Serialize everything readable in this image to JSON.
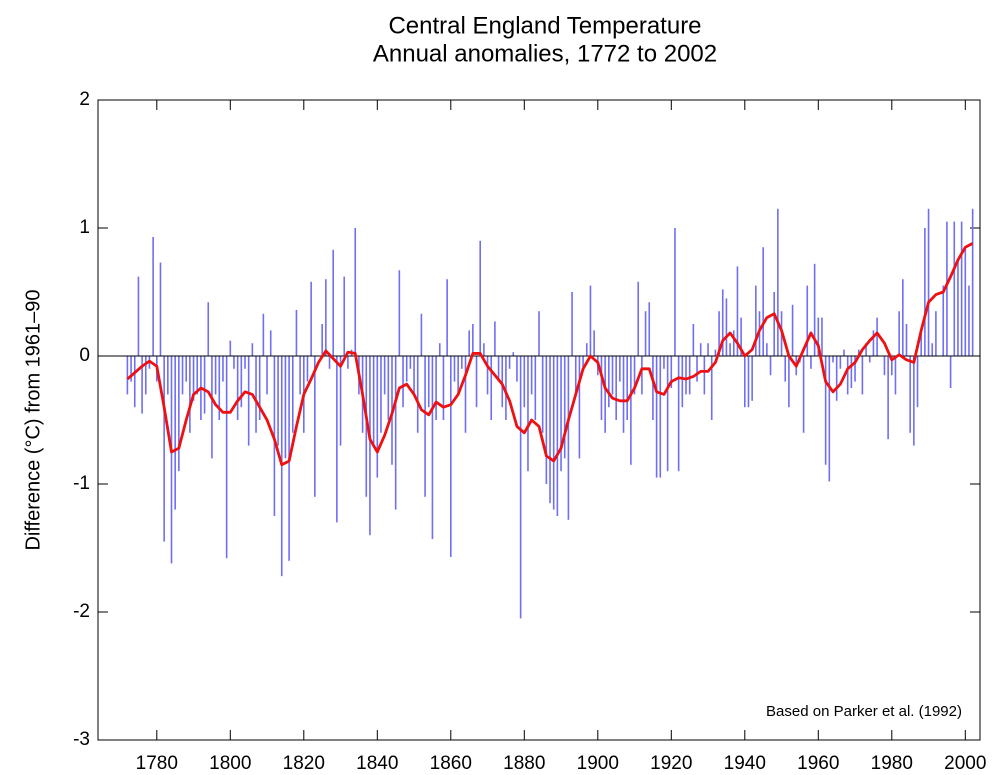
{
  "chart_data": {
    "type": "combo",
    "title": "Central England Temperature",
    "subtitle": "Annual anomalies, 1772 to 2002",
    "y_label": "Difference (°C) from 1961–90",
    "annotation": "Based on Parker et al. (1992)",
    "xlim": [
      1764,
      2004
    ],
    "xticks": [
      1780,
      1800,
      1820,
      1840,
      1860,
      1880,
      1900,
      1920,
      1940,
      1960,
      1980,
      2000
    ],
    "ylim": [
      -3,
      2
    ],
    "yticks": [
      -3,
      -2,
      -1,
      0,
      1,
      2
    ],
    "series": [
      {
        "type": "bar",
        "color": "#6f6ff2",
        "x": [
          1772,
          1773,
          1774,
          1775,
          1776,
          1777,
          1778,
          1779,
          1780,
          1781,
          1782,
          1783,
          1784,
          1785,
          1786,
          1787,
          1788,
          1789,
          1790,
          1791,
          1792,
          1793,
          1794,
          1795,
          1796,
          1797,
          1798,
          1799,
          1800,
          1801,
          1802,
          1803,
          1804,
          1805,
          1806,
          1807,
          1808,
          1809,
          1810,
          1811,
          1812,
          1813,
          1814,
          1815,
          1816,
          1817,
          1818,
          1819,
          1820,
          1821,
          1822,
          1823,
          1824,
          1825,
          1826,
          1827,
          1828,
          1829,
          1830,
          1831,
          1832,
          1833,
          1834,
          1835,
          1836,
          1837,
          1838,
          1839,
          1840,
          1841,
          1842,
          1843,
          1844,
          1845,
          1846,
          1847,
          1848,
          1849,
          1850,
          1851,
          1852,
          1853,
          1854,
          1855,
          1856,
          1857,
          1858,
          1859,
          1860,
          1861,
          1862,
          1863,
          1864,
          1865,
          1866,
          1867,
          1868,
          1869,
          1870,
          1871,
          1872,
          1873,
          1874,
          1875,
          1876,
          1877,
          1878,
          1879,
          1880,
          1881,
          1882,
          1883,
          1884,
          1885,
          1886,
          1887,
          1888,
          1889,
          1890,
          1891,
          1892,
          1893,
          1894,
          1895,
          1896,
          1897,
          1898,
          1899,
          1900,
          1901,
          1902,
          1903,
          1904,
          1905,
          1906,
          1907,
          1908,
          1909,
          1910,
          1911,
          1912,
          1913,
          1914,
          1915,
          1916,
          1917,
          1918,
          1919,
          1920,
          1921,
          1922,
          1923,
          1924,
          1925,
          1926,
          1927,
          1928,
          1929,
          1930,
          1931,
          1932,
          1933,
          1934,
          1935,
          1936,
          1937,
          1938,
          1939,
          1940,
          1941,
          1942,
          1943,
          1944,
          1945,
          1946,
          1947,
          1948,
          1949,
          1950,
          1951,
          1952,
          1953,
          1954,
          1955,
          1956,
          1957,
          1958,
          1959,
          1960,
          1961,
          1962,
          1963,
          1964,
          1965,
          1966,
          1967,
          1968,
          1969,
          1970,
          1971,
          1972,
          1973,
          1974,
          1975,
          1976,
          1977,
          1978,
          1979,
          1980,
          1981,
          1982,
          1983,
          1984,
          1985,
          1986,
          1987,
          1988,
          1989,
          1990,
          1991,
          1992,
          1993,
          1994,
          1995,
          1996,
          1997,
          1998,
          1999,
          2000,
          2001,
          2002
        ],
        "values": [
          -0.3,
          -0.2,
          -0.4,
          0.62,
          -0.45,
          -0.3,
          -0.1,
          0.93,
          -0.2,
          0.73,
          -1.45,
          -0.3,
          -1.62,
          -1.2,
          -0.9,
          -0.3,
          -0.2,
          -0.6,
          -0.35,
          -0.3,
          -0.5,
          -0.45,
          0.42,
          -0.8,
          -0.3,
          -0.5,
          -0.2,
          -1.58,
          0.12,
          -0.1,
          -0.5,
          -0.4,
          -0.1,
          -0.7,
          0.1,
          -0.6,
          -0.5,
          0.33,
          -0.3,
          0.2,
          -1.25,
          -0.7,
          -1.72,
          -0.8,
          -1.6,
          -0.6,
          0.36,
          -0.3,
          -0.6,
          -0.2,
          0.58,
          -1.1,
          0.0,
          0.25,
          0.6,
          -0.1,
          0.83,
          -1.3,
          -0.7,
          0.62,
          -0.1,
          0.05,
          1.0,
          -0.3,
          -0.6,
          -1.1,
          -1.4,
          -0.7,
          -0.95,
          -0.6,
          -0.3,
          -0.5,
          -0.85,
          -1.2,
          0.67,
          -0.4,
          -0.2,
          -0.1,
          -0.3,
          -0.6,
          0.33,
          -1.1,
          -0.4,
          -1.43,
          -0.5,
          0.1,
          -0.5,
          0.6,
          -1.57,
          -0.2,
          -0.3,
          -0.1,
          -0.6,
          0.2,
          0.25,
          -0.4,
          0.9,
          0.1,
          -0.3,
          -0.5,
          0.27,
          -0.2,
          -0.4,
          -0.5,
          -0.1,
          0.03,
          -0.2,
          -2.05,
          -0.4,
          -0.9,
          -0.3,
          -0.5,
          0.35,
          -0.6,
          -1.0,
          -1.15,
          -1.2,
          -1.25,
          -0.9,
          -0.8,
          -1.28,
          0.5,
          -0.3,
          -0.8,
          -0.1,
          0.1,
          0.55,
          0.2,
          -0.15,
          -0.5,
          -0.6,
          -0.4,
          -0.3,
          -0.5,
          -0.2,
          -0.6,
          -0.5,
          -0.85,
          -0.3,
          0.58,
          -0.3,
          0.35,
          0.42,
          -0.5,
          -0.95,
          -0.95,
          -0.1,
          -0.9,
          -0.25,
          1.0,
          -0.9,
          -0.4,
          -0.3,
          -0.3,
          0.25,
          -0.2,
          0.1,
          -0.3,
          0.1,
          -0.5,
          0.05,
          0.35,
          0.52,
          0.45,
          0.1,
          0.2,
          0.7,
          0.3,
          -0.4,
          -0.4,
          -0.35,
          0.55,
          0.35,
          0.85,
          0.1,
          -0.15,
          0.5,
          1.15,
          0.35,
          -0.2,
          -0.4,
          0.4,
          -0.15,
          -0.05,
          -0.6,
          0.55,
          -0.1,
          0.72,
          0.3,
          0.3,
          -0.85,
          -0.98,
          -0.05,
          -0.35,
          -0.1,
          0.05,
          -0.3,
          -0.25,
          -0.2,
          0.05,
          -0.3,
          0.1,
          -0.05,
          0.2,
          0.3,
          0.0,
          -0.15,
          -0.65,
          -0.15,
          -0.3,
          0.35,
          0.6,
          0.25,
          -0.6,
          -0.7,
          -0.4,
          0.2,
          1.0,
          1.15,
          0.1,
          0.35,
          0.0,
          0.55,
          1.05,
          -0.25,
          1.05,
          0.75,
          1.05,
          0.85,
          0.55,
          1.15
        ]
      },
      {
        "type": "line",
        "color": "#ee1111",
        "x": [
          1772,
          1774,
          1776,
          1778,
          1780,
          1782,
          1784,
          1786,
          1788,
          1790,
          1792,
          1794,
          1796,
          1798,
          1800,
          1802,
          1804,
          1806,
          1808,
          1810,
          1812,
          1814,
          1816,
          1818,
          1820,
          1822,
          1824,
          1826,
          1828,
          1830,
          1832,
          1834,
          1836,
          1838,
          1840,
          1842,
          1844,
          1846,
          1848,
          1850,
          1852,
          1854,
          1856,
          1858,
          1860,
          1862,
          1864,
          1866,
          1868,
          1870,
          1872,
          1874,
          1876,
          1878,
          1880,
          1882,
          1884,
          1886,
          1888,
          1890,
          1892,
          1894,
          1896,
          1898,
          1900,
          1902,
          1904,
          1906,
          1908,
          1910,
          1912,
          1914,
          1916,
          1918,
          1920,
          1922,
          1924,
          1926,
          1928,
          1930,
          1932,
          1934,
          1936,
          1938,
          1940,
          1942,
          1944,
          1946,
          1948,
          1950,
          1952,
          1954,
          1956,
          1958,
          1960,
          1962,
          1964,
          1966,
          1968,
          1970,
          1972,
          1974,
          1976,
          1978,
          1980,
          1982,
          1984,
          1986,
          1988,
          1990,
          1992,
          1994,
          1996,
          1998,
          2000,
          2002
        ],
        "values": [
          -0.18,
          -0.13,
          -0.08,
          -0.04,
          -0.08,
          -0.4,
          -0.75,
          -0.72,
          -0.5,
          -0.3,
          -0.25,
          -0.28,
          -0.38,
          -0.44,
          -0.44,
          -0.35,
          -0.28,
          -0.3,
          -0.4,
          -0.5,
          -0.65,
          -0.85,
          -0.82,
          -0.55,
          -0.3,
          -0.18,
          -0.05,
          0.04,
          -0.02,
          -0.08,
          0.03,
          0.02,
          -0.3,
          -0.65,
          -0.75,
          -0.62,
          -0.45,
          -0.25,
          -0.22,
          -0.3,
          -0.42,
          -0.46,
          -0.36,
          -0.4,
          -0.38,
          -0.3,
          -0.15,
          0.02,
          0.02,
          -0.08,
          -0.15,
          -0.22,
          -0.35,
          -0.55,
          -0.6,
          -0.5,
          -0.55,
          -0.78,
          -0.82,
          -0.72,
          -0.5,
          -0.3,
          -0.1,
          0.0,
          -0.05,
          -0.25,
          -0.33,
          -0.35,
          -0.35,
          -0.25,
          -0.1,
          -0.1,
          -0.28,
          -0.3,
          -0.2,
          -0.17,
          -0.18,
          -0.16,
          -0.12,
          -0.12,
          -0.05,
          0.12,
          0.18,
          0.1,
          0.0,
          0.05,
          0.2,
          0.3,
          0.33,
          0.2,
          0.0,
          -0.08,
          0.05,
          0.18,
          0.08,
          -0.2,
          -0.28,
          -0.22,
          -0.1,
          -0.05,
          0.05,
          0.12,
          0.18,
          0.1,
          -0.03,
          0.01,
          -0.03,
          -0.05,
          0.2,
          0.42,
          0.48,
          0.5,
          0.62,
          0.75,
          0.85,
          0.88
        ]
      }
    ]
  }
}
